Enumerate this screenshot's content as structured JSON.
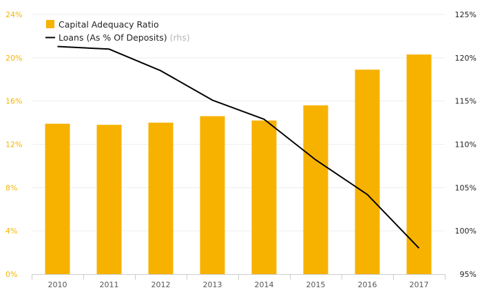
{
  "chart_data": {
    "type": "bar",
    "categories": [
      "2010",
      "2011",
      "2012",
      "2013",
      "2014",
      "2015",
      "2016",
      "2017"
    ],
    "series": [
      {
        "name": "Capital Adequacy Ratio",
        "type": "bar",
        "axis": "left",
        "values": [
          13.9,
          13.8,
          14.0,
          14.6,
          14.2,
          15.6,
          18.9,
          20.3
        ],
        "color": "#f7b200"
      },
      {
        "name": "Loans (As % Of Deposits)",
        "name_note": "(rhs)",
        "type": "line",
        "axis": "right",
        "values": [
          121.3,
          121.0,
          118.5,
          115.1,
          112.9,
          108.2,
          104.2,
          98.0
        ],
        "color": "#000000"
      }
    ],
    "y_left": {
      "min": 0,
      "max": 24,
      "ticks": [
        0,
        4,
        8,
        12,
        16,
        20,
        24
      ],
      "tick_labels": [
        "0%",
        "4%",
        "8%",
        "12%",
        "16%",
        "20%",
        "24%"
      ],
      "label_color": "#f5b400"
    },
    "y_right": {
      "min": 95,
      "max": 125,
      "ticks": [
        95,
        100,
        105,
        110,
        115,
        120,
        125
      ],
      "tick_labels": [
        "95%",
        "100%",
        "105%",
        "110%",
        "115%",
        "120%",
        "125%"
      ]
    },
    "grid": true,
    "legend_position": "top-left"
  }
}
